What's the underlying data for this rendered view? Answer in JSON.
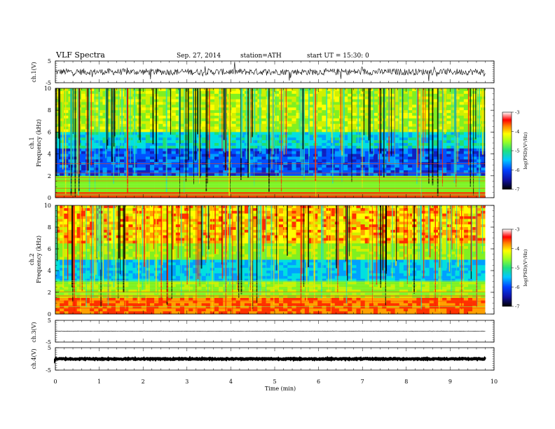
{
  "header": {
    "title": "VLF  Spectra",
    "date": "Sep. 27, 2014",
    "station": "station=ATH",
    "start": "start  UT  =   15:30: 0"
  },
  "chart_data": [
    {
      "type": "line",
      "ylabel": "ch.1(V)",
      "yticks": [
        "5",
        "-5"
      ],
      "ylim": [
        -5,
        5
      ],
      "description": "noisy waveform around 0 V"
    },
    {
      "type": "heatmap",
      "ylabel_line1": "ch.1",
      "ylabel_line2": "Frequency  (kHz)",
      "ylim": [
        0,
        10
      ],
      "yticks": [
        "0",
        "2",
        "4",
        "6",
        "8",
        "10"
      ],
      "colorbar": {
        "label": "log(PSD)(V²/Hz)",
        "ticks": [
          "-3",
          "-4",
          "-5",
          "-6",
          "-7"
        ],
        "range": [
          -7,
          -3
        ]
      }
    },
    {
      "type": "heatmap",
      "ylabel_line1": "ch.2",
      "ylabel_line2": "Frequency  (kHz)",
      "ylim": [
        0,
        10
      ],
      "yticks": [
        "0",
        "2",
        "4",
        "6",
        "8",
        "10"
      ],
      "colorbar": {
        "label": "log(PSD)(V²/Hz)",
        "ticks": [
          "-3",
          "-4",
          "-5",
          "-6",
          "-7"
        ],
        "range": [
          -7,
          -3
        ]
      }
    },
    {
      "type": "line",
      "ylabel": "ch.3(V)",
      "yticks": [
        "5",
        "-5"
      ],
      "ylim": [
        -5,
        5
      ]
    },
    {
      "type": "line",
      "ylabel": "ch.4(V)",
      "yticks": [
        "5",
        "-5"
      ],
      "ylim": [
        -5,
        5
      ]
    }
  ],
  "xaxis": {
    "label": "Time  (min)",
    "ticks": [
      "0",
      "1",
      "2",
      "3",
      "4",
      "5",
      "6",
      "7",
      "8",
      "9",
      "10"
    ],
    "xlim": [
      0,
      10
    ],
    "data_end": 9.8
  }
}
